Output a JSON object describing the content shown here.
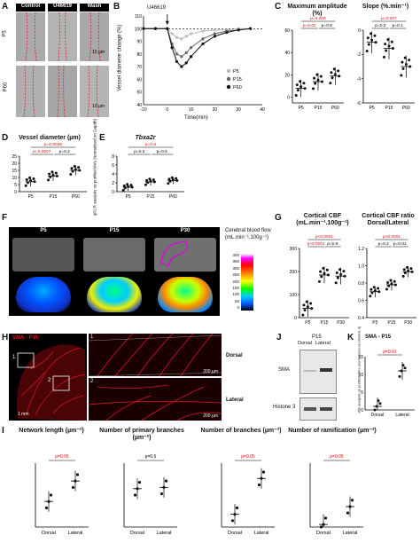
{
  "panels": {
    "A": {
      "letter": "A",
      "headers": [
        "Control",
        "U46619",
        "Wash"
      ],
      "rows": [
        "P5",
        "P60"
      ],
      "scale": "10 µm"
    },
    "B": {
      "letter": "B",
      "ylabel": "Vessel diameter change (%)",
      "xlabel": "Time(min)",
      "drug": "U46619",
      "legend": [
        "P5",
        "P15",
        "P60"
      ],
      "yticks": [
        "110",
        "100",
        "90",
        "80",
        "70",
        "60",
        "50",
        "40"
      ],
      "xticks": [
        "-10",
        "0",
        "10",
        "20",
        "30",
        "40"
      ]
    },
    "C": {
      "letter": "C",
      "title1": "Maximum amplitude (%)",
      "title2": "Slope (%.min⁻¹)",
      "p_amp": [
        "p=0.009",
        "p=0.02",
        "p=0.8"
      ],
      "p_slope": [
        "p=0.007",
        "p=0.2",
        "p=0.1"
      ],
      "yt1": [
        "60",
        "40",
        "20",
        "0"
      ],
      "yt2": [
        "0",
        "-2",
        "-4",
        "-6"
      ]
    },
    "D": {
      "letter": "D",
      "title": "Vessel diameter (µm)",
      "p": [
        "p=0.0026",
        "p=0.0007",
        "p=0.2"
      ],
      "yticks": [
        "25",
        "20",
        "15",
        "10",
        "5",
        "0"
      ]
    },
    "E": {
      "letter": "E",
      "title": "Tbxa2r",
      "ylabel": "qPCR analysis on purified MVs (normalized on Gapdh)",
      "p": [
        "p=0.6",
        "p=0.2",
        "p=0.5"
      ],
      "yticks": [
        "8",
        "6",
        "4",
        "2",
        "0"
      ]
    },
    "F": {
      "letter": "F",
      "headers": [
        "P5",
        "P15",
        "P30"
      ],
      "cbf_label": "Cerebral blood flow (mL.min⁻¹.100g⁻¹)",
      "colorticks": [
        "400",
        "350",
        "300",
        "250",
        "200",
        "150",
        "100",
        "50",
        "0"
      ]
    },
    "G": {
      "letter": "G",
      "title1": "Cortical CBF (mL.min⁻¹.100g⁻¹)",
      "title2": "Cortical CBF ratio Dorsal/Lateral",
      "p1": [
        "p<0.0001",
        "p<0.0001",
        "p=0.9"
      ],
      "p2": [
        "p<0.0001",
        "p=0.2",
        "p=0.01"
      ],
      "yt1": [
        "300",
        "200",
        "100",
        "0"
      ],
      "yt2": [
        "1.2",
        "1.0",
        "0.8",
        "0.6",
        "0.4"
      ]
    },
    "H": {
      "letter": "H",
      "title": "SMA - P15",
      "scale_main": "1 mm",
      "dorsal": "Dorsal",
      "lateral": "Lateral",
      "scale_zoom": "200 µm",
      "box1": "1",
      "box2": "2"
    },
    "J": {
      "letter": "J",
      "title": "P15",
      "cols": [
        "Dorsal",
        "Lateral"
      ],
      "rows": [
        "SMA",
        "Histone 3"
      ]
    },
    "K": {
      "letter": "K",
      "title": "SMA - P15",
      "ylabel": "WB analysis on purified MVs (normalized on Histone 3)",
      "p": "p=0.01",
      "yticks": [
        "15",
        "10",
        "5",
        "0"
      ],
      "cats": [
        "Dorsal",
        "Lateral"
      ]
    },
    "I": {
      "letter": "I",
      "titles": [
        "Network length (µm⁻²)",
        "Number of primary branches (µm⁻²)",
        "Number of branches (µm⁻²)",
        "Number of ramification (µm⁻²)"
      ],
      "p": [
        "p=0.05",
        "p=0.5",
        "p=0.05",
        "p=0.05"
      ],
      "cats": [
        "Dorsal",
        "Lateral"
      ]
    }
  },
  "groups": {
    "age3": [
      "P5",
      "P15",
      "P60"
    ],
    "age3b": [
      "P5",
      "P15",
      "P30"
    ]
  },
  "chart_data": [
    {
      "type": "line",
      "title": "",
      "xlabel": "Time(min)",
      "ylabel": "Vessel diameter change (%)",
      "xlim": [
        -10,
        40
      ],
      "ylim": [
        40,
        110
      ],
      "series": [
        {
          "name": "P5",
          "x": [
            -10,
            -5,
            0,
            2,
            4,
            6,
            8,
            10,
            15,
            20,
            25,
            30,
            35
          ],
          "y": [
            100,
            100,
            100,
            96,
            93,
            92,
            94,
            96,
            98,
            99,
            99,
            100,
            100
          ]
        },
        {
          "name": "P15",
          "x": [
            -10,
            -5,
            0,
            2,
            4,
            6,
            8,
            10,
            15,
            20,
            25,
            30,
            35
          ],
          "y": [
            100,
            100,
            100,
            88,
            80,
            78,
            81,
            85,
            92,
            96,
            98,
            99,
            100
          ]
        },
        {
          "name": "P60",
          "x": [
            -10,
            -5,
            0,
            2,
            4,
            6,
            8,
            10,
            15,
            20,
            25,
            30,
            35
          ],
          "y": [
            100,
            100,
            100,
            85,
            74,
            70,
            73,
            78,
            88,
            94,
            97,
            99,
            100
          ]
        }
      ]
    },
    {
      "type": "scatter",
      "title": "Maximum amplitude (%)",
      "categories": [
        "P5",
        "P15",
        "P60"
      ],
      "means": [
        8,
        14,
        19
      ],
      "ylim": [
        -5,
        60
      ]
    },
    {
      "type": "scatter",
      "title": "Slope (%.min⁻¹)",
      "categories": [
        "P5",
        "P15",
        "P60"
      ],
      "means": [
        -1,
        -1.5,
        -3
      ],
      "ylim": [
        -6,
        0
      ]
    },
    {
      "type": "scatter",
      "title": "Vessel diameter (µm)",
      "categories": [
        "P5",
        "P15",
        "P60"
      ],
      "means": [
        7,
        11,
        15
      ],
      "ylim": [
        0,
        25
      ]
    },
    {
      "type": "scatter",
      "title": "Tbxa2r",
      "categories": [
        "P5",
        "P15",
        "P60"
      ],
      "means": [
        1,
        2.2,
        2.5
      ],
      "ylim": [
        0,
        8
      ]
    },
    {
      "type": "scatter",
      "title": "Cortical CBF",
      "categories": [
        "P5",
        "P15",
        "P30"
      ],
      "means": [
        40,
        185,
        180
      ],
      "ylim": [
        0,
        300
      ]
    },
    {
      "type": "scatter",
      "title": "Cortical CBF ratio",
      "categories": [
        "P5",
        "P15",
        "P30"
      ],
      "means": [
        0.7,
        0.78,
        0.93
      ],
      "ylim": [
        0.4,
        1.2
      ]
    },
    {
      "type": "scatter",
      "title": "SMA - P15",
      "categories": [
        "Dorsal",
        "Lateral"
      ],
      "means": [
        1,
        11
      ],
      "ylim": [
        0,
        15
      ]
    }
  ],
  "colors": {
    "sig": "#dd1111",
    "cbf_blue": "#1a3fd8",
    "sma_red": "#e0141c"
  }
}
